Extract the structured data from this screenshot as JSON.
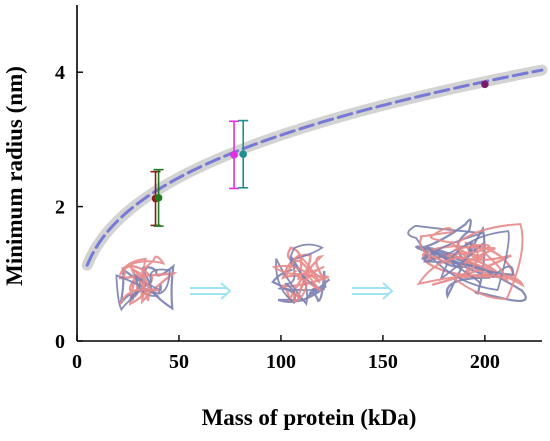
{
  "chart_data": {
    "type": "scatter",
    "title": "",
    "xlabel": "Mass of protein (kDa)",
    "ylabel": "Minimum radius (nm)",
    "xlim": [
      0,
      228
    ],
    "ylim": [
      0,
      5
    ],
    "x_ticks": [
      0,
      50,
      100,
      150,
      200
    ],
    "y_ticks": [
      0,
      2,
      4
    ],
    "grid": false,
    "legend": "none",
    "fit_curve": {
      "name": "",
      "style": "dashed",
      "color": "#6b6fd6",
      "halo_color": "#d3d3d3",
      "formula_hint": "R_min = 0.066 * M^(1/3)",
      "x_range": [
        5,
        228
      ]
    },
    "points": [
      {
        "x": 38.5,
        "y": 2.12,
        "err": 0.4,
        "color": "#8b1a1a"
      },
      {
        "x": 40.0,
        "y": 2.13,
        "err": 0.42,
        "color": "#1f7a1f"
      },
      {
        "x": 77.0,
        "y": 2.77,
        "err": 0.5,
        "color": "#e030e0"
      },
      {
        "x": 81.5,
        "y": 2.78,
        "err": 0.5,
        "color": "#1f8f8f"
      },
      {
        "x": 200.0,
        "y": 3.82,
        "err": 0.0,
        "color": "#7a1a6a"
      }
    ],
    "insets": [
      "protein-structure-small",
      "protein-structure-medium",
      "protein-structure-large"
    ]
  },
  "colors": {
    "protein_a": "#e8898a",
    "protein_b": "#7a7fb0",
    "arrow": "#9fe4f2",
    "axis": "#000000"
  }
}
